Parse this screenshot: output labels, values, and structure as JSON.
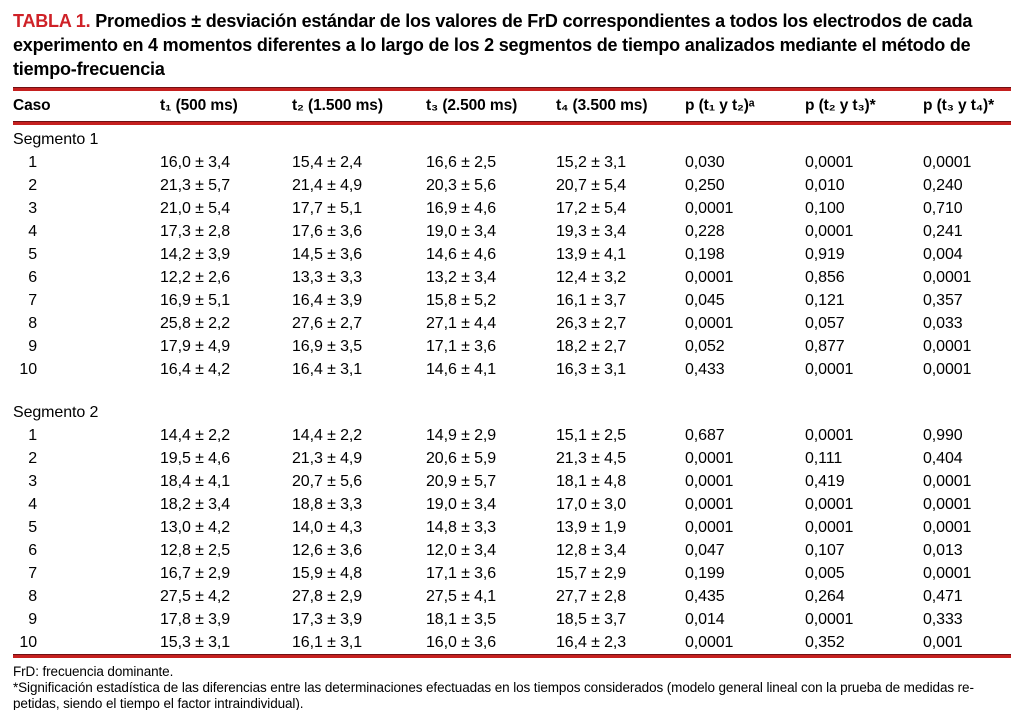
{
  "colors": {
    "accent_red": "#c5201f",
    "rule_dark_edge": "#701013",
    "title_label_red": "#cf2127",
    "text": "#000000",
    "background": "#ffffff"
  },
  "title": {
    "label": "TABLA 1.",
    "text": "Promedios ± desviación estándar de los valores de FrD correspondientes a todos los electrodos de cada experimento en 4 momentos diferentes a lo largo de los 2 segmentos de tiempo analizados mediante el método de tiempo-frecuencia"
  },
  "table": {
    "columns": [
      "Caso",
      "t₁ (500 ms)",
      "t₂ (1.500 ms)",
      "t₃ (2.500 ms)",
      "t₄ (3.500 ms)",
      "p (t₁ y t₂)ᵃ",
      "p (t₂ y t₃)*",
      "p (t₃ y t₄)*"
    ],
    "segments": [
      {
        "name": "Segmento 1",
        "rows": [
          [
            "1",
            "16,0 ± 3,4",
            "15,4 ± 2,4",
            "16,6 ± 2,5",
            "15,2 ± 3,1",
            "0,030",
            "0,0001",
            "0,0001"
          ],
          [
            "2",
            "21,3 ± 5,7",
            "21,4 ± 4,9",
            "20,3 ± 5,6",
            "20,7 ± 5,4",
            "0,250",
            "0,010",
            "0,240"
          ],
          [
            "3",
            "21,0 ± 5,4",
            "17,7 ± 5,1",
            "16,9 ± 4,6",
            "17,2 ± 5,4",
            "0,0001",
            "0,100",
            "0,710"
          ],
          [
            "4",
            "17,3 ± 2,8",
            "17,6 ± 3,6",
            "19,0 ± 3,4",
            "19,3 ± 3,4",
            "0,228",
            "0,0001",
            "0,241"
          ],
          [
            "5",
            "14,2 ± 3,9",
            "14,5 ± 3,6",
            "14,6 ± 4,6",
            "13,9 ± 4,1",
            "0,198",
            "0,919",
            "0,004"
          ],
          [
            "6",
            "12,2 ± 2,6",
            "13,3 ± 3,3",
            "13,2 ± 3,4",
            "12,4 ± 3,2",
            "0,0001",
            "0,856",
            "0,0001"
          ],
          [
            "7",
            "16,9 ± 5,1",
            "16,4 ± 3,9",
            "15,8 ± 5,2",
            "16,1 ± 3,7",
            "0,045",
            "0,121",
            "0,357"
          ],
          [
            "8",
            "25,8 ± 2,2",
            "27,6 ± 2,7",
            "27,1 ± 4,4",
            "26,3 ± 2,7",
            "0,0001",
            "0,057",
            "0,033"
          ],
          [
            "9",
            "17,9 ± 4,9",
            "16,9 ± 3,5",
            "17,1 ± 3,6",
            "18,2 ± 2,7",
            "0,052",
            "0,877",
            "0,0001"
          ],
          [
            "10",
            "16,4 ± 4,2",
            "16,4 ± 3,1",
            "14,6 ± 4,1",
            "16,3 ± 3,1",
            "0,433",
            "0,0001",
            "0,0001"
          ]
        ]
      },
      {
        "name": "Segmento 2",
        "rows": [
          [
            "1",
            "14,4 ± 2,2",
            "14,4 ± 2,2",
            "14,9 ± 2,9",
            "15,1 ± 2,5",
            "0,687",
            "0,0001",
            "0,990"
          ],
          [
            "2",
            "19,5 ± 4,6",
            "21,3 ± 4,9",
            "20,6 ± 5,9",
            "21,3 ± 4,5",
            "0,0001",
            "0,111",
            "0,404"
          ],
          [
            "3",
            "18,4 ± 4,1",
            "20,7 ± 5,6",
            "20,9 ± 5,7",
            "18,1 ± 4,8",
            "0,0001",
            "0,419",
            "0,0001"
          ],
          [
            "4",
            "18,2 ± 3,4",
            "18,8 ± 3,3",
            "19,0 ± 3,4",
            "17,0 ± 3,0",
            "0,0001",
            "0,0001",
            "0,0001"
          ],
          [
            "5",
            "13,0 ± 4,2",
            "14,0 ± 4,3",
            "14,8 ± 3,3",
            "13,9 ± 1,9",
            "0,0001",
            "0,0001",
            "0,0001"
          ],
          [
            "6",
            "12,8 ± 2,5",
            "12,6 ± 3,6",
            "12,0 ± 3,4",
            "12,8 ± 3,4",
            "0,047",
            "0,107",
            "0,013"
          ],
          [
            "7",
            "16,7 ± 2,9",
            "15,9 ± 4,8",
            "17,1 ± 3,6",
            "15,7 ± 2,9",
            "0,199",
            "0,005",
            "0,0001"
          ],
          [
            "8",
            "27,5 ± 4,2",
            "27,8 ± 2,9",
            "27,5 ± 4,1",
            "27,7 ± 2,8",
            "0,435",
            "0,264",
            "0,471"
          ],
          [
            "9",
            "17,8 ± 3,9",
            "17,3 ± 3,9",
            "18,1 ± 3,5",
            "18,5 ± 3,7",
            "0,014",
            "0,0001",
            "0,333"
          ],
          [
            "10",
            "15,3 ± 3,1",
            "16,1 ± 3,1",
            "16,0 ± 3,6",
            "16,4 ± 2,3",
            "0,0001",
            "0,352",
            "0,001"
          ]
        ]
      }
    ]
  },
  "footnotes": {
    "line1": "FrD: frecuencia dominante.",
    "line2": "*Significación estadística de las diferencias entre las determinaciones efectuadas en los tiempos considerados (modelo general lineal con la prueba de medidas re-",
    "line3": "petidas, siendo el tiempo el factor intraindividual)."
  }
}
